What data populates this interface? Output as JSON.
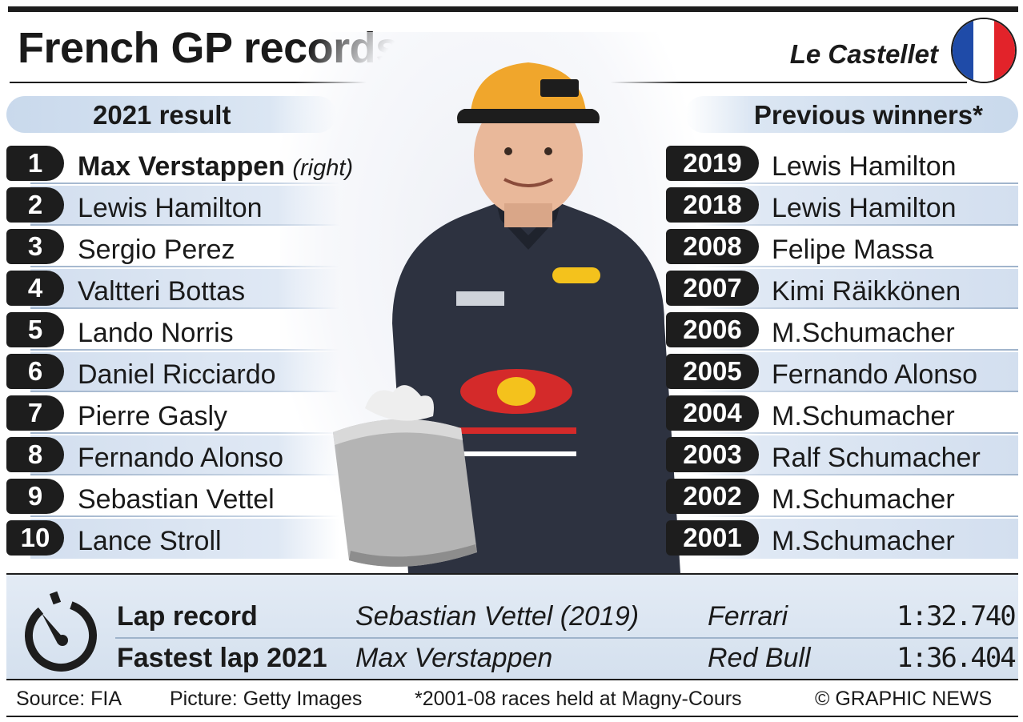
{
  "header": {
    "title": "French GP records",
    "location": "Le Castellet",
    "flag_colors": [
      "#1f4ba8",
      "#ffffff",
      "#e2232a"
    ]
  },
  "result_2021": {
    "heading": "2021 result",
    "rows": [
      {
        "pos": "1",
        "driver": "Max Verstappen",
        "note": "(right)"
      },
      {
        "pos": "2",
        "driver": "Lewis Hamilton"
      },
      {
        "pos": "3",
        "driver": "Sergio Perez"
      },
      {
        "pos": "4",
        "driver": "Valtteri Bottas"
      },
      {
        "pos": "5",
        "driver": "Lando Norris"
      },
      {
        "pos": "6",
        "driver": "Daniel Ricciardo"
      },
      {
        "pos": "7",
        "driver": "Pierre Gasly"
      },
      {
        "pos": "8",
        "driver": "Fernando Alonso"
      },
      {
        "pos": "9",
        "driver": "Sebastian Vettel"
      },
      {
        "pos": "10",
        "driver": "Lance Stroll"
      }
    ]
  },
  "previous_winners": {
    "heading": "Previous winners*",
    "rows": [
      {
        "year": "2019",
        "driver": "Lewis Hamilton"
      },
      {
        "year": "2018",
        "driver": "Lewis Hamilton"
      },
      {
        "year": "2008",
        "driver": "Felipe Massa"
      },
      {
        "year": "2007",
        "driver": "Kimi Räikkönen"
      },
      {
        "year": "2006",
        "driver": "M.Schumacher"
      },
      {
        "year": "2005",
        "driver": "Fernando Alonso"
      },
      {
        "year": "2004",
        "driver": "M.Schumacher"
      },
      {
        "year": "2003",
        "driver": "Ralf Schumacher"
      },
      {
        "year": "2002",
        "driver": "M.Schumacher"
      },
      {
        "year": "2001",
        "driver": "M.Schumacher"
      }
    ]
  },
  "records": [
    {
      "label": "Lap record",
      "driver": "Sebastian Vettel (2019)",
      "team": "Ferrari",
      "time": "1:32.740"
    },
    {
      "label": "Fastest lap 2021",
      "driver": "Max Verstappen",
      "team": "Red Bull",
      "time": "1:36.404"
    }
  ],
  "footer": {
    "source": "Source: FIA",
    "picture": "Picture: Getty Images",
    "note": "*2001-08 races held at Magny-Cours",
    "copyright": "© GRAPHIC NEWS"
  },
  "icons": {
    "stopwatch": "stopwatch-icon",
    "trophy": "trophy-icon",
    "flag": "france-flag-icon"
  },
  "colors": {
    "dark": "#1d1d1d",
    "row_shade": "#d3dfef",
    "panel": "#dbe6f3"
  }
}
